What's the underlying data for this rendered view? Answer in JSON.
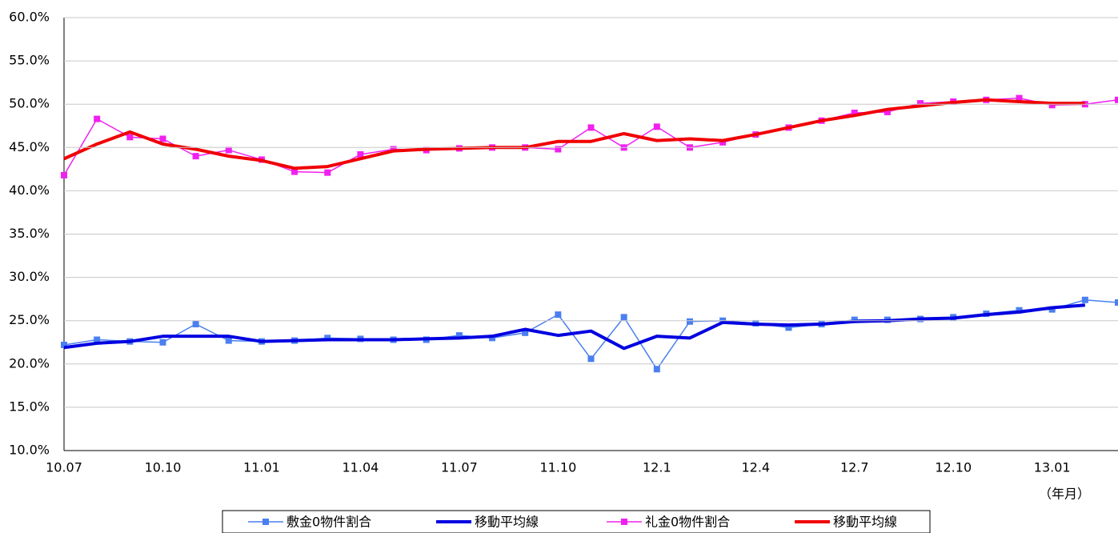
{
  "chart_data": {
    "type": "line",
    "categories": [
      "10.07",
      null,
      null,
      "10.10",
      null,
      null,
      "11.01",
      null,
      null,
      "11.04",
      null,
      null,
      "11.07",
      null,
      null,
      "11.10",
      null,
      null,
      "12.1",
      null,
      null,
      "12.4",
      null,
      null,
      "12.7",
      null,
      null,
      "12.10",
      null,
      null,
      "13.01",
      null,
      null
    ],
    "x_unit_label": "（年月）",
    "ylim": [
      10,
      60
    ],
    "yticks": [
      {
        "value": 10,
        "label": "10.0%"
      },
      {
        "value": 15,
        "label": "15.0%"
      },
      {
        "value": 20,
        "label": "20.0%"
      },
      {
        "value": 25,
        "label": "25.0%"
      },
      {
        "value": 30,
        "label": "30.0%"
      },
      {
        "value": 35,
        "label": "35.0%"
      },
      {
        "value": 40,
        "label": "40.0%"
      },
      {
        "value": 45,
        "label": "45.0%"
      },
      {
        "value": 50,
        "label": "50.0%"
      },
      {
        "value": 55,
        "label": "55.0%"
      },
      {
        "value": 60,
        "label": "60.0%"
      }
    ],
    "grid": true,
    "legend": "bottom",
    "series": [
      {
        "name": "敷金0物件割合",
        "color": "#4a7ff0",
        "marker": "square",
        "line_width": 1.5,
        "values": [
          22.2,
          22.8,
          22.6,
          22.5,
          24.6,
          22.7,
          22.6,
          22.7,
          23.0,
          22.9,
          22.8,
          22.8,
          23.3,
          23.0,
          23.6,
          25.7,
          20.6,
          25.4,
          19.4,
          24.9,
          25.0,
          24.7,
          24.2,
          24.6,
          25.1,
          25.1,
          25.2,
          25.4,
          25.8,
          26.2,
          26.3,
          27.4,
          27.1
        ]
      },
      {
        "name": "移動平均線",
        "color": "#0000e0",
        "marker": "none",
        "line_width": 4,
        "values": [
          21.9,
          22.4,
          22.6,
          23.2,
          23.2,
          23.2,
          22.6,
          22.7,
          22.8,
          22.8,
          22.8,
          22.9,
          23.0,
          23.2,
          24.0,
          23.3,
          23.8,
          21.8,
          23.2,
          23.0,
          24.8,
          24.6,
          24.5,
          24.6,
          24.9,
          25.0,
          25.2,
          25.3,
          25.7,
          26.0,
          26.5,
          26.8,
          null
        ]
      },
      {
        "name": "礼金0物件割合",
        "color": "#f020f0",
        "marker": "square",
        "line_width": 1.5,
        "values": [
          41.8,
          48.3,
          46.2,
          46.0,
          44.0,
          44.7,
          43.6,
          42.2,
          42.1,
          44.2,
          44.8,
          44.7,
          44.9,
          45.0,
          45.0,
          44.8,
          47.3,
          45.0,
          47.4,
          45.0,
          45.6,
          46.5,
          47.3,
          48.1,
          49.0,
          49.1,
          50.1,
          50.3,
          50.5,
          50.7,
          49.9,
          50.0,
          50.5
        ]
      },
      {
        "name": "移動平均線",
        "color": "#f00000",
        "marker": "none",
        "line_width": 4,
        "values": [
          43.7,
          45.4,
          46.8,
          45.4,
          44.8,
          44.0,
          43.5,
          42.6,
          42.8,
          43.7,
          44.6,
          44.8,
          44.9,
          45.0,
          45.0,
          45.7,
          45.7,
          46.6,
          45.8,
          46.0,
          45.8,
          46.5,
          47.3,
          48.1,
          48.7,
          49.4,
          49.8,
          50.2,
          50.5,
          50.3,
          50.1,
          50.1,
          null
        ]
      }
    ]
  }
}
